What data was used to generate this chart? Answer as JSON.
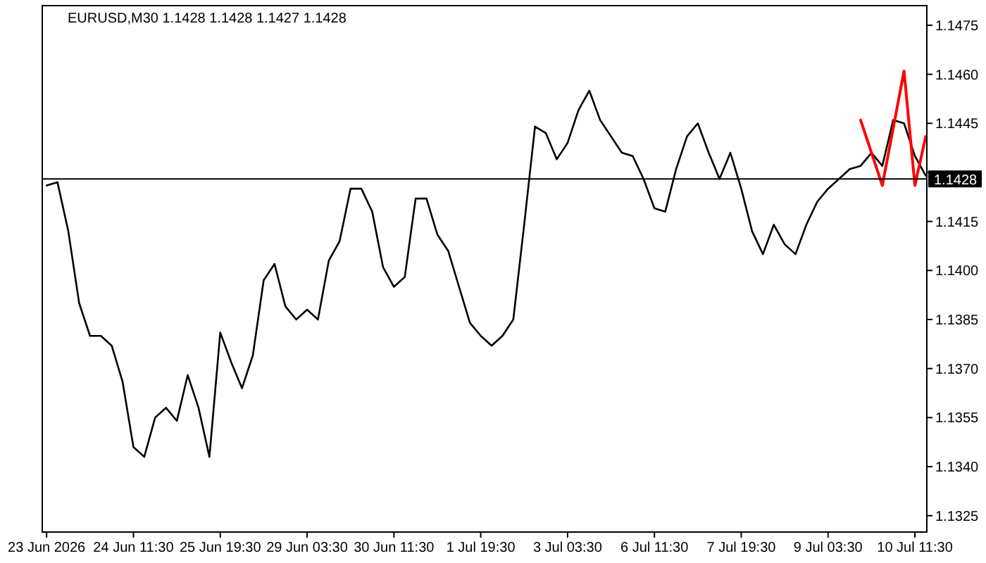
{
  "chart_data": {
    "type": "line",
    "title": "EURUSD,M30  1.1428 1.1428 1.1427 1.1428",
    "categories": [
      "23 Jun 2026",
      null,
      null,
      null,
      null,
      null,
      null,
      null,
      "24 Jun 11:30",
      null,
      null,
      null,
      null,
      null,
      null,
      null,
      "25 Jun 19:30",
      null,
      null,
      null,
      null,
      null,
      null,
      null,
      "29 Jun 03:30",
      null,
      null,
      null,
      null,
      null,
      null,
      null,
      "30 Jun 11:30",
      null,
      null,
      null,
      null,
      null,
      null,
      null,
      "1 Jul 19:30",
      null,
      null,
      null,
      null,
      null,
      null,
      null,
      "3 Jul 03:30",
      null,
      null,
      null,
      null,
      null,
      null,
      null,
      "6 Jul 11:30",
      null,
      null,
      null,
      null,
      null,
      null,
      null,
      "7 Jul 19:30",
      null,
      null,
      null,
      null,
      null,
      null,
      null,
      "9 Jul 03:30",
      null,
      null,
      null,
      null,
      null,
      null,
      null,
      "10 Jul 11:30",
      null
    ],
    "series": [
      {
        "color": "#000000",
        "values": [
          1.1426,
          1.1427,
          1.1412,
          1.139,
          1.138,
          1.138,
          1.1377,
          1.1366,
          1.1346,
          1.1343,
          1.1355,
          1.1358,
          1.1354,
          1.1368,
          1.1358,
          1.1343,
          1.1381,
          1.1372,
          1.1364,
          1.1374,
          1.1397,
          1.1402,
          1.1389,
          1.1385,
          1.1388,
          1.1385,
          1.1403,
          1.1409,
          1.1425,
          1.1425,
          1.1418,
          1.1401,
          1.1395,
          1.1398,
          1.1422,
          1.1422,
          1.1411,
          1.1406,
          1.1395,
          1.1384,
          1.138,
          1.1377,
          1.138,
          1.1385,
          1.1414,
          1.1444,
          1.1442,
          1.1434,
          1.1439,
          1.1449,
          1.1455,
          1.1446,
          1.1441,
          1.1436,
          1.1435,
          1.1428,
          1.1419,
          1.1418,
          1.1431,
          1.1441,
          1.1445,
          1.1436,
          1.1428,
          1.1436,
          1.1425,
          1.1412,
          1.1405,
          1.1414,
          1.1408,
          1.1405,
          1.1414,
          1.1421,
          1.1425,
          1.1428,
          1.1431,
          1.1432,
          1.1436,
          1.1432,
          1.1446,
          1.1445,
          1.1435,
          1.1429
        ]
      },
      {
        "color": "#ff0000",
        "values": [
          null,
          null,
          null,
          null,
          null,
          null,
          null,
          null,
          null,
          null,
          null,
          null,
          null,
          null,
          null,
          null,
          null,
          null,
          null,
          null,
          null,
          null,
          null,
          null,
          null,
          null,
          null,
          null,
          null,
          null,
          null,
          null,
          null,
          null,
          null,
          null,
          null,
          null,
          null,
          null,
          null,
          null,
          null,
          null,
          null,
          null,
          null,
          null,
          null,
          null,
          null,
          null,
          null,
          null,
          null,
          null,
          null,
          null,
          null,
          null,
          null,
          null,
          null,
          null,
          null,
          null,
          null,
          null,
          null,
          null,
          null,
          null,
          null,
          null,
          null,
          1.1446,
          null,
          1.1426,
          null,
          1.1461,
          1.1426,
          1.1441
        ]
      }
    ],
    "ylim": [
      1.132,
      1.1481
    ],
    "yticks": [
      {
        "value": 1.1325,
        "label": "1.1325"
      },
      {
        "value": 1.134,
        "label": "1.1340"
      },
      {
        "value": 1.1355,
        "label": "1.1355"
      },
      {
        "value": 1.137,
        "label": "1.1370"
      },
      {
        "value": 1.1385,
        "label": "1.1385"
      },
      {
        "value": 1.14,
        "label": "1.1400"
      },
      {
        "value": 1.1415,
        "label": "1.1415"
      },
      {
        "value": 1.143,
        "label": null
      },
      {
        "value": 1.1445,
        "label": "1.1445"
      },
      {
        "value": 1.146,
        "label": "1.1460"
      },
      {
        "value": 1.1475,
        "label": "1.1475"
      }
    ],
    "ref_lines": [
      {
        "axis": "y",
        "value": 1.1428,
        "label": "1.1428",
        "color": "#000000"
      }
    ],
    "grid": false,
    "marker": "none",
    "line_style": "solid"
  }
}
